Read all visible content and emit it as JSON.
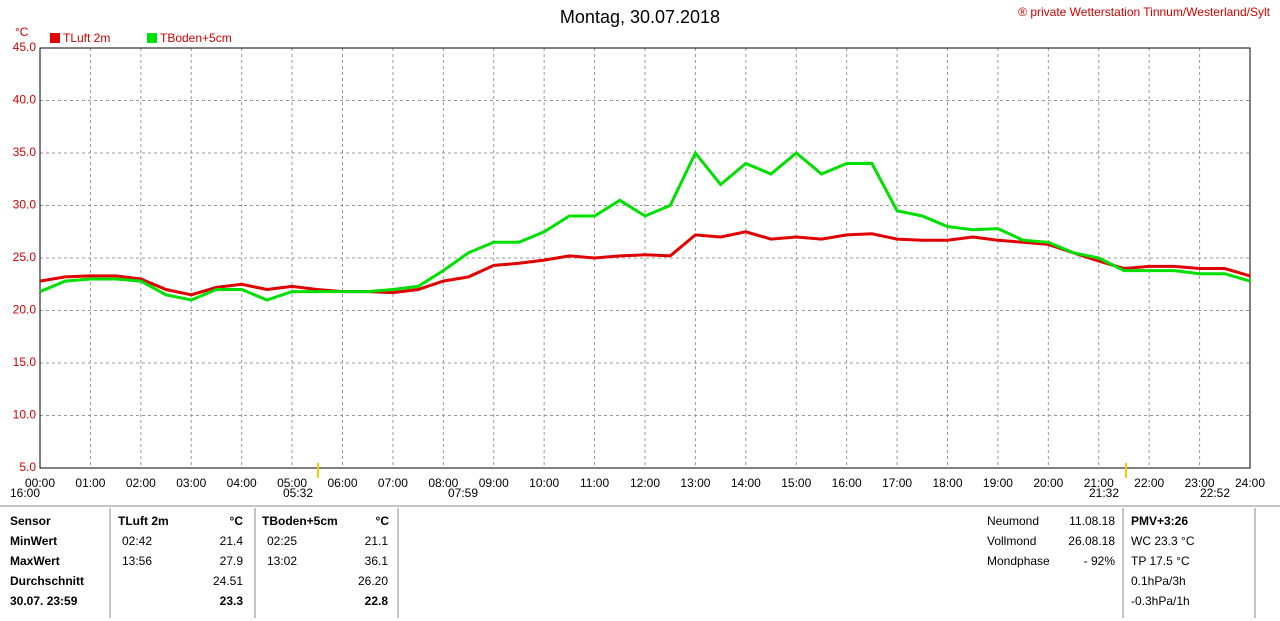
{
  "chart_data": {
    "type": "line",
    "title": "Montag, 30.07.2018",
    "copyright": "® private Wetterstation Tinnum/Westerland/Sylt",
    "y_unit": "°C",
    "x": [
      0,
      0.5,
      1,
      1.5,
      2,
      2.5,
      3,
      3.5,
      4,
      4.5,
      5,
      5.5,
      6,
      6.5,
      7,
      7.5,
      8,
      8.5,
      9,
      9.5,
      10,
      10.5,
      11,
      11.5,
      12,
      12.5,
      13,
      13.5,
      14,
      14.5,
      15,
      15.5,
      16,
      16.5,
      17,
      17.5,
      18,
      18.5,
      19,
      19.5,
      20,
      20.5,
      21,
      21.5,
      22,
      22.5,
      23,
      23.5,
      24
    ],
    "series": [
      {
        "name": "TLuft 2m",
        "color": "#e00000",
        "values": [
          22.8,
          23.2,
          23.3,
          23.3,
          23.0,
          22.0,
          21.5,
          22.2,
          22.5,
          22.0,
          22.3,
          22.0,
          21.8,
          21.8,
          21.7,
          22.0,
          22.8,
          23.2,
          24.3,
          24.5,
          24.8,
          25.2,
          25.0,
          25.2,
          25.3,
          25.2,
          27.2,
          27.0,
          27.5,
          26.8,
          27.0,
          26.8,
          27.2,
          27.3,
          26.8,
          26.7,
          26.7,
          27.0,
          26.7,
          26.5,
          26.3,
          25.5,
          24.7,
          24.0,
          24.2,
          24.2,
          24.0,
          24.0,
          23.3
        ]
      },
      {
        "name": "TBoden+5cm",
        "color": "#00e000",
        "values": [
          21.8,
          22.8,
          23.0,
          23.0,
          22.8,
          21.5,
          21.0,
          22.0,
          22.0,
          21.0,
          21.8,
          21.8,
          21.8,
          21.8,
          22.0,
          22.3,
          23.8,
          25.5,
          26.5,
          26.5,
          27.5,
          29.0,
          29.0,
          30.5,
          29.0,
          30.0,
          35.0,
          32.0,
          34.0,
          33.0,
          35.0,
          33.0,
          34.0,
          34.0,
          29.5,
          29.0,
          28.0,
          27.7,
          27.8,
          26.7,
          26.5,
          25.5,
          25.0,
          23.8,
          23.8,
          23.8,
          23.5,
          23.5,
          22.8
        ]
      }
    ],
    "xlim": [
      0,
      24
    ],
    "xticks": [
      {
        "value": 0,
        "label": "00:00"
      },
      {
        "value": 1,
        "label": "01:00"
      },
      {
        "value": 2,
        "label": "02:00"
      },
      {
        "value": 3,
        "label": "03:00"
      },
      {
        "value": 4,
        "label": "04:00"
      },
      {
        "value": 5,
        "label": "05:00"
      },
      {
        "value": 6,
        "label": "06:00"
      },
      {
        "value": 7,
        "label": "07:00"
      },
      {
        "value": 8,
        "label": "08:00"
      },
      {
        "value": 9,
        "label": "09:00"
      },
      {
        "value": 10,
        "label": "10:00"
      },
      {
        "value": 11,
        "label": "11:00"
      },
      {
        "value": 12,
        "label": "12:00"
      },
      {
        "value": 13,
        "label": "13:00"
      },
      {
        "value": 14,
        "label": "14:00"
      },
      {
        "value": 15,
        "label": "15:00"
      },
      {
        "value": 16,
        "label": "16:00"
      },
      {
        "value": 17,
        "label": "17:00"
      },
      {
        "value": 18,
        "label": "18:00"
      },
      {
        "value": 19,
        "label": "19:00"
      },
      {
        "value": 20,
        "label": "20:00"
      },
      {
        "value": 21,
        "label": "21:00"
      },
      {
        "value": 22,
        "label": "22:00"
      },
      {
        "value": 23,
        "label": "23:00"
      },
      {
        "value": 24,
        "label": "24:00"
      }
    ],
    "ylim": [
      5,
      45
    ],
    "yticks": [
      {
        "value": 5,
        "label": "5.0"
      },
      {
        "value": 10,
        "label": "10.0"
      },
      {
        "value": 15,
        "label": "15.0"
      },
      {
        "value": 20,
        "label": "20.0"
      },
      {
        "value": 25,
        "label": "25.0"
      },
      {
        "value": 30,
        "label": "30.0"
      },
      {
        "value": 35,
        "label": "35.0"
      },
      {
        "value": 40,
        "label": "40.0"
      },
      {
        "value": 45,
        "label": "45.0"
      }
    ],
    "grid": true,
    "annotations": [
      "16:00",
      "05:32",
      "07:59",
      "21:32",
      "22:52"
    ]
  },
  "table": {
    "headers": [
      "Sensor",
      "TLuft 2m",
      "°C",
      "TBoden+5cm",
      "°C"
    ],
    "rows": [
      {
        "label": "MinWert",
        "t1": "02:42",
        "v1": "21.4",
        "t2": "02:25",
        "v2": "21.1"
      },
      {
        "label": "MaxWert",
        "t1": "13:56",
        "v1": "27.9",
        "t2": "13:02",
        "v2": "36.1"
      },
      {
        "label": "Durchschnitt",
        "v1": "24.51",
        "v2": "26.20"
      },
      {
        "label": "30.07. 23:59",
        "v1": "23.3",
        "v2": "22.8"
      }
    ]
  },
  "moon": [
    {
      "label": "Neumond",
      "value": "11.08.18"
    },
    {
      "label": "Vollmond",
      "value": "26.08.18"
    },
    {
      "label": "Mondphase",
      "value": "- 92%"
    }
  ],
  "pmv": [
    "PMV+3:26",
    "WC 23.3 °C",
    "TP 17.5 °C",
    "0.1hPa/3h",
    "-0.3hPa/1h"
  ]
}
